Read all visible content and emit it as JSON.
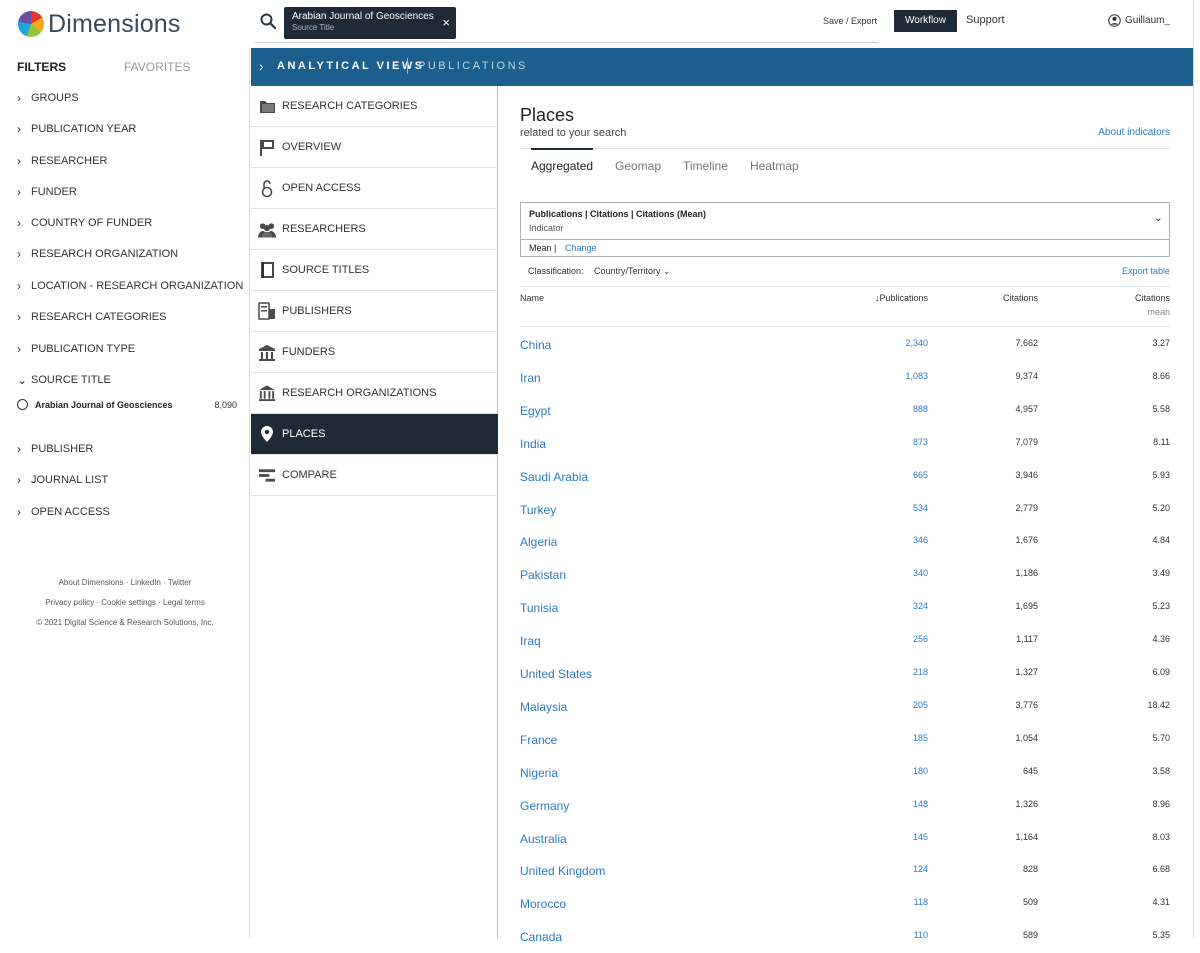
{
  "app": {
    "name": "Dimensions"
  },
  "search": {
    "chip_title": "Arabian Journal of Geosciences",
    "chip_subtitle": "Source Title",
    "close_glyph": "×"
  },
  "header": {
    "save_export": "Save / Export",
    "workflow": "Workflow",
    "support": "Support",
    "user": "Guillaum_"
  },
  "filters": {
    "tab_filters": "FILTERS",
    "tab_favorites": "FAVORITES",
    "items": [
      {
        "label": "GROUPS",
        "expanded": false
      },
      {
        "label": "PUBLICATION YEAR",
        "expanded": false
      },
      {
        "label": "RESEARCHER",
        "expanded": false
      },
      {
        "label": "FUNDER",
        "expanded": false
      },
      {
        "label": "COUNTRY OF FUNDER",
        "expanded": false
      },
      {
        "label": "RESEARCH ORGANIZATION",
        "expanded": false
      },
      {
        "label": "LOCATION - RESEARCH ORGANIZATION",
        "expanded": false
      },
      {
        "label": "RESEARCH CATEGORIES",
        "expanded": false
      },
      {
        "label": "PUBLICATION TYPE",
        "expanded": false
      },
      {
        "label": "SOURCE TITLE",
        "expanded": true
      },
      {
        "label": "PUBLISHER",
        "expanded": false
      },
      {
        "label": "JOURNAL LIST",
        "expanded": false
      },
      {
        "label": "OPEN ACCESS",
        "expanded": false
      }
    ],
    "source_value": {
      "label": "Arabian Journal of Geosciences",
      "count": "8,090"
    }
  },
  "footer": {
    "about": "About Dimensions",
    "linkedin": "LinkedIn",
    "twitter": "Twitter",
    "privacy": "Privacy policy",
    "cookies": "Cookie settings",
    "legal": "Legal terms",
    "copyright": "© 2021 Digital Science & Research Solutions, Inc."
  },
  "analytical_views": {
    "title": "ANALYTICAL VIEWS",
    "section": "PUBLICATIONS",
    "views": [
      {
        "label": "RESEARCH CATEGORIES",
        "icon": "folder-icon"
      },
      {
        "label": "OVERVIEW",
        "icon": "flag-icon"
      },
      {
        "label": "OPEN ACCESS",
        "icon": "open-lock-icon"
      },
      {
        "label": "RESEARCHERS",
        "icon": "people-icon"
      },
      {
        "label": "SOURCE TITLES",
        "icon": "book-icon"
      },
      {
        "label": "PUBLISHERS",
        "icon": "publisher-icon"
      },
      {
        "label": "FUNDERS",
        "icon": "building-icon"
      },
      {
        "label": "RESEARCH ORGANIZATIONS",
        "icon": "institution-icon"
      },
      {
        "label": "PLACES",
        "icon": "map-pin-icon",
        "active": true
      },
      {
        "label": "COMPARE",
        "icon": "compare-icon"
      }
    ]
  },
  "places": {
    "title": "Places",
    "subtitle": "related to your search",
    "about_indicators": "About indicators",
    "tabs": [
      "Aggregated",
      "Geomap",
      "Timeline",
      "Heatmap"
    ],
    "active_tab": "Aggregated",
    "indicator": {
      "title": "Publications | Citations | Citations (Mean)",
      "label": "Indicator",
      "mean": "Mean  |",
      "change": "Change"
    },
    "classification_label": "Classification:",
    "classification_value": "Country/Territory",
    "export_table": "Export table",
    "columns": {
      "name": "Name",
      "publications": "Publications",
      "citations": "Citations",
      "citations_mean": "Citations",
      "citations_mean_sub": "mean"
    },
    "rows": [
      {
        "name": "China",
        "publications": "2,340",
        "citations": "7,662",
        "mean": "3.27"
      },
      {
        "name": "Iran",
        "publications": "1,083",
        "citations": "9,374",
        "mean": "8.66"
      },
      {
        "name": "Egypt",
        "publications": "888",
        "citations": "4,957",
        "mean": "5.58"
      },
      {
        "name": "India",
        "publications": "873",
        "citations": "7,079",
        "mean": "8.11"
      },
      {
        "name": "Saudi Arabia",
        "publications": "665",
        "citations": "3,946",
        "mean": "5.93"
      },
      {
        "name": "Turkey",
        "publications": "534",
        "citations": "2,779",
        "mean": "5.20"
      },
      {
        "name": "Algeria",
        "publications": "346",
        "citations": "1,676",
        "mean": "4.84"
      },
      {
        "name": "Pakistan",
        "publications": "340",
        "citations": "1,186",
        "mean": "3.49"
      },
      {
        "name": "Tunisia",
        "publications": "324",
        "citations": "1,695",
        "mean": "5.23"
      },
      {
        "name": "Iraq",
        "publications": "256",
        "citations": "1,117",
        "mean": "4.36"
      },
      {
        "name": "United States",
        "publications": "218",
        "citations": "1,327",
        "mean": "6.09"
      },
      {
        "name": "Malaysia",
        "publications": "205",
        "citations": "3,776",
        "mean": "18.42"
      },
      {
        "name": "France",
        "publications": "185",
        "citations": "1,054",
        "mean": "5.70"
      },
      {
        "name": "Nigeria",
        "publications": "180",
        "citations": "645",
        "mean": "3.58"
      },
      {
        "name": "Germany",
        "publications": "148",
        "citations": "1,326",
        "mean": "8.96"
      },
      {
        "name": "Australia",
        "publications": "145",
        "citations": "1,164",
        "mean": "8.03"
      },
      {
        "name": "United Kingdom",
        "publications": "124",
        "citations": "828",
        "mean": "6.68"
      },
      {
        "name": "Morocco",
        "publications": "118",
        "citations": "509",
        "mean": "4.31"
      },
      {
        "name": "Canada",
        "publications": "110",
        "citations": "589",
        "mean": "5.35"
      }
    ]
  },
  "colors": {
    "accent_blue": "#2b7bc0",
    "header_blue": "#1a5f8e",
    "dark_navy": "#1e2a36"
  }
}
